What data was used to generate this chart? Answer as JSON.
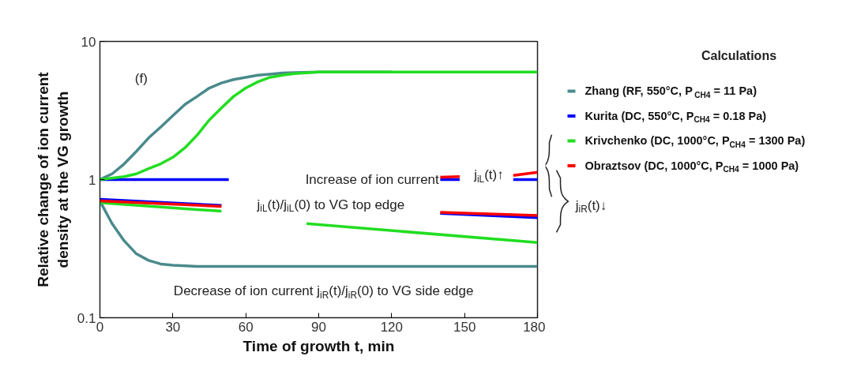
{
  "chart_data": {
    "type": "line",
    "xlabel": "Time of growth t, min",
    "ylabel": "Relative change of ion current\ndensity at the VG growth",
    "legend_title": "Calculations",
    "legend": "right",
    "log": "y",
    "grid": false,
    "xlim": [
      0,
      180
    ],
    "xticks": [
      0,
      30,
      60,
      90,
      120,
      150,
      180
    ],
    "ylim": [
      0.1,
      10
    ],
    "yticks": [
      0.1,
      1,
      10
    ],
    "series": [
      {
        "name": "Zhang (RF, 550°C, P$_{CH4}$ = 11 Pa)",
        "color": "#4a8a8c",
        "x": [
          0,
          5,
          10,
          15,
          20,
          25,
          30,
          35,
          40,
          45,
          50,
          55,
          60,
          65,
          70,
          75,
          80,
          90,
          120
        ],
        "values": [
          1,
          1.1,
          1.3,
          1.6,
          2.0,
          2.4,
          2.9,
          3.5,
          4.0,
          4.6,
          5.0,
          5.3,
          5.5,
          5.7,
          5.8,
          5.9,
          5.95,
          6.0,
          6.0
        ]
      },
      {
        "color": "#4a8a8c",
        "x": [
          0,
          5,
          10,
          15,
          20,
          25,
          30,
          40,
          60,
          180
        ],
        "values": [
          0.7,
          0.48,
          0.36,
          0.29,
          0.26,
          0.245,
          0.24,
          0.235,
          0.235,
          0.235
        ]
      },
      {
        "name": "Kurita (DC, 550°C, P$_{CH4}$ = 0.18 Pa)",
        "color": "#0000ff",
        "x": [
          0,
          53,
          54,
          140,
          148,
          149,
          170,
          180
        ],
        "values": [
          1,
          1,
          null,
          1,
          1,
          null,
          1,
          1
        ]
      },
      {
        "color": "#0000ff",
        "x": [
          0,
          50,
          51,
          140,
          180
        ],
        "values": [
          0.72,
          0.65,
          null,
          0.57,
          0.53
        ]
      },
      {
        "name": "Krivchenko (DC, 1000°C, P$_{CH4}$ = 1300 Pa)",
        "color": "#22dd22",
        "x": [
          0,
          10,
          15,
          20,
          25,
          30,
          35,
          40,
          45,
          50,
          55,
          60,
          65,
          70,
          75,
          80,
          90,
          120,
          180
        ],
        "values": [
          1,
          1.05,
          1.1,
          1.2,
          1.3,
          1.45,
          1.7,
          2.1,
          2.7,
          3.3,
          4.0,
          4.6,
          5.1,
          5.5,
          5.7,
          5.85,
          6.0,
          6.0,
          6.0
        ]
      },
      {
        "color": "#22dd22",
        "x": [
          0,
          50,
          51,
          85,
          180
        ],
        "values": [
          0.68,
          0.59,
          null,
          0.48,
          0.35
        ]
      },
      {
        "name": "Obraztsov (DC, 1000°C, P$_{CH4}$ = 1000 Pa)",
        "color": "#ff0000",
        "x": [
          140,
          148,
          149,
          170,
          180
        ],
        "values": [
          1.04,
          1.05,
          null,
          1.07,
          1.13
        ]
      },
      {
        "color": "#ff0000",
        "x": [
          0,
          50,
          51,
          140,
          180
        ],
        "values": [
          0.7,
          0.64,
          null,
          0.58,
          0.55
        ]
      }
    ],
    "annotations": [
      "(f)",
      "Increase of ion current",
      "j$_{iL}$(t)/j$_{iL}$(0) to VG top edge",
      "j$_{iL}$(t)↑",
      "Decrease of ion current j$_{iR}$(t)/j$_{iR}$(0) to VG side edge",
      "j$_{iR}$(t)↓"
    ]
  }
}
